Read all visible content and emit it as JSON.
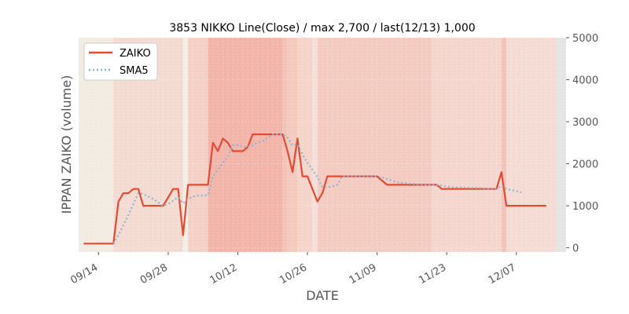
{
  "chart_data": {
    "type": "line",
    "title": "3853 NIKKO Line(Close) / max 2,700 / last(12/13) 1,000",
    "xlabel": "DATE",
    "ylabel": "IPPAN ZAIKO (volume)",
    "ylim": [
      -100,
      5000
    ],
    "yticks": [
      0,
      1000,
      2000,
      3000,
      4000,
      5000
    ],
    "y_axis_side": "right",
    "xlim": [
      "2021-09-10",
      "2021-12-17"
    ],
    "xticks": [
      {
        "date": "2021-09-14",
        "label": "09/14"
      },
      {
        "date": "2021-09-28",
        "label": "09/28"
      },
      {
        "date": "2021-10-12",
        "label": "10/12"
      },
      {
        "date": "2021-10-26",
        "label": "10/26"
      },
      {
        "date": "2021-11-09",
        "label": "11/09"
      },
      {
        "date": "2021-11-23",
        "label": "11/23"
      },
      {
        "date": "2021-12-07",
        "label": "12/07"
      }
    ],
    "grid": true,
    "legend_position": "top-left",
    "colors": {
      "zaiko": "#e24a33",
      "sma5": "#8eb4cf",
      "plot_bg": "#e5e5e5",
      "shade_low": "#f2ebe0",
      "shade_high": "#f4b3a9"
    },
    "series": [
      {
        "name": "ZAIKO",
        "x": [
          "2021-09-11",
          "2021-09-14",
          "2021-09-15",
          "2021-09-16",
          "2021-09-17",
          "2021-09-18",
          "2021-09-19",
          "2021-09-20",
          "2021-09-21",
          "2021-09-22",
          "2021-09-23",
          "2021-09-24",
          "2021-09-25",
          "2021-09-26",
          "2021-09-27",
          "2021-09-28",
          "2021-09-29",
          "2021-09-30",
          "2021-10-01",
          "2021-10-02",
          "2021-10-03",
          "2021-10-04",
          "2021-10-05",
          "2021-10-06",
          "2021-10-07",
          "2021-10-08",
          "2021-10-09",
          "2021-10-10",
          "2021-10-11",
          "2021-10-12",
          "2021-10-13",
          "2021-10-14",
          "2021-10-15",
          "2021-10-16",
          "2021-10-17",
          "2021-10-18",
          "2021-10-19",
          "2021-10-20",
          "2021-10-21",
          "2021-10-22",
          "2021-10-23",
          "2021-10-24",
          "2021-10-25",
          "2021-10-26",
          "2021-10-27",
          "2021-10-28",
          "2021-10-29",
          "2021-10-30",
          "2021-10-31",
          "2021-11-01",
          "2021-11-02",
          "2021-11-09",
          "2021-11-10",
          "2021-11-11",
          "2021-11-12",
          "2021-11-13",
          "2021-11-16",
          "2021-11-19",
          "2021-11-20",
          "2021-11-21",
          "2021-11-22",
          "2021-11-23",
          "2021-11-24",
          "2021-11-30",
          "2021-12-01",
          "2021-12-02",
          "2021-12-03",
          "2021-12-04",
          "2021-12-05",
          "2021-12-08",
          "2021-12-10",
          "2021-12-13"
        ],
        "values": [
          100,
          100,
          100,
          100,
          100,
          1100,
          1300,
          1300,
          1400,
          1400,
          1000,
          1000,
          1000,
          1000,
          1000,
          1200,
          1400,
          1400,
          300,
          1500,
          1500,
          1500,
          1500,
          1500,
          2500,
          2300,
          2600,
          2500,
          2300,
          2300,
          2300,
          2400,
          2700,
          2700,
          2700,
          2700,
          2700,
          2700,
          2700,
          2300,
          1800,
          2600,
          1700,
          1700,
          1400,
          1100,
          1300,
          1700,
          1700,
          1700,
          1700,
          1700,
          1600,
          1500,
          1500,
          1500,
          1500,
          1500,
          1500,
          1500,
          1400,
          1400,
          1400,
          1400,
          1400,
          1400,
          1400,
          1800,
          1000,
          1000,
          1000,
          1000
        ]
      },
      {
        "name": "SMA5",
        "x": [
          "2021-09-17",
          "2021-09-18",
          "2021-09-19",
          "2021-09-20",
          "2021-09-21",
          "2021-09-22",
          "2021-09-23",
          "2021-09-24",
          "2021-09-25",
          "2021-09-26",
          "2021-09-27",
          "2021-09-28",
          "2021-09-29",
          "2021-09-30",
          "2021-10-01",
          "2021-10-02",
          "2021-10-03",
          "2021-10-04",
          "2021-10-05",
          "2021-10-06",
          "2021-10-07",
          "2021-10-08",
          "2021-10-09",
          "2021-10-10",
          "2021-10-11",
          "2021-10-12",
          "2021-10-13",
          "2021-10-14",
          "2021-10-15",
          "2021-10-16",
          "2021-10-17",
          "2021-10-18",
          "2021-10-19",
          "2021-10-20",
          "2021-10-21",
          "2021-10-22",
          "2021-10-23",
          "2021-10-24",
          "2021-10-25",
          "2021-10-26",
          "2021-10-27",
          "2021-10-28",
          "2021-10-29",
          "2021-10-30",
          "2021-10-31",
          "2021-11-01",
          "2021-11-02",
          "2021-11-09",
          "2021-11-10",
          "2021-11-11",
          "2021-11-12",
          "2021-11-13",
          "2021-11-16",
          "2021-11-19",
          "2021-11-20",
          "2021-11-21",
          "2021-11-22",
          "2021-11-23",
          "2021-11-24",
          "2021-11-30",
          "2021-12-01",
          "2021-12-02",
          "2021-12-03",
          "2021-12-04",
          "2021-12-05",
          "2021-12-08"
        ],
        "values": [
          100,
          300,
          540,
          780,
          1040,
          1300,
          1280,
          1220,
          1160,
          1080,
          1000,
          1040,
          1120,
          1200,
          1060,
          1160,
          1220,
          1240,
          1240,
          1260,
          1700,
          1860,
          2020,
          2180,
          2440,
          2440,
          2400,
          2400,
          2440,
          2500,
          2540,
          2620,
          2700,
          2700,
          2700,
          2620,
          2440,
          2460,
          2220,
          2020,
          1860,
          1680,
          1440,
          1440,
          1460,
          1500,
          1700,
          1700,
          1680,
          1640,
          1600,
          1560,
          1520,
          1500,
          1500,
          1500,
          1480,
          1460,
          1440,
          1420,
          1400,
          1400,
          1400,
          1480,
          1400,
          1320
        ]
      }
    ],
    "background_shading": [
      {
        "start": "2021-09-10",
        "end": "2021-09-11",
        "color": "#f1ece4"
      },
      {
        "start": "2021-09-11",
        "end": "2021-09-17",
        "color": "#f2ebe1"
      },
      {
        "start": "2021-09-17",
        "end": "2021-10-01",
        "color": "#f4dbd2"
      },
      {
        "start": "2021-10-01",
        "end": "2021-10-02",
        "color": "#f3eee6"
      },
      {
        "start": "2021-10-02",
        "end": "2021-10-06",
        "color": "#f4d0c6"
      },
      {
        "start": "2021-10-06",
        "end": "2021-10-21",
        "color": "#f3b5aa"
      },
      {
        "start": "2021-10-21",
        "end": "2021-10-22",
        "color": "#f4c3b8"
      },
      {
        "start": "2021-10-22",
        "end": "2021-10-24",
        "color": "#f4c9be"
      },
      {
        "start": "2021-10-24",
        "end": "2021-10-27",
        "color": "#f4d4cb"
      },
      {
        "start": "2021-10-27",
        "end": "2021-10-28",
        "color": "#f4e0d9"
      },
      {
        "start": "2021-10-28",
        "end": "2021-11-20",
        "color": "#f4cbc1"
      },
      {
        "start": "2021-11-20",
        "end": "2021-12-04",
        "color": "#f4d6ce"
      },
      {
        "start": "2021-12-04",
        "end": "2021-12-05",
        "color": "#f4c2b7"
      },
      {
        "start": "2021-12-05",
        "end": "2021-12-15",
        "color": "#f4dcd5"
      },
      {
        "start": "2021-12-15",
        "end": "2021-12-17",
        "color": "#e5e5e5"
      }
    ]
  }
}
